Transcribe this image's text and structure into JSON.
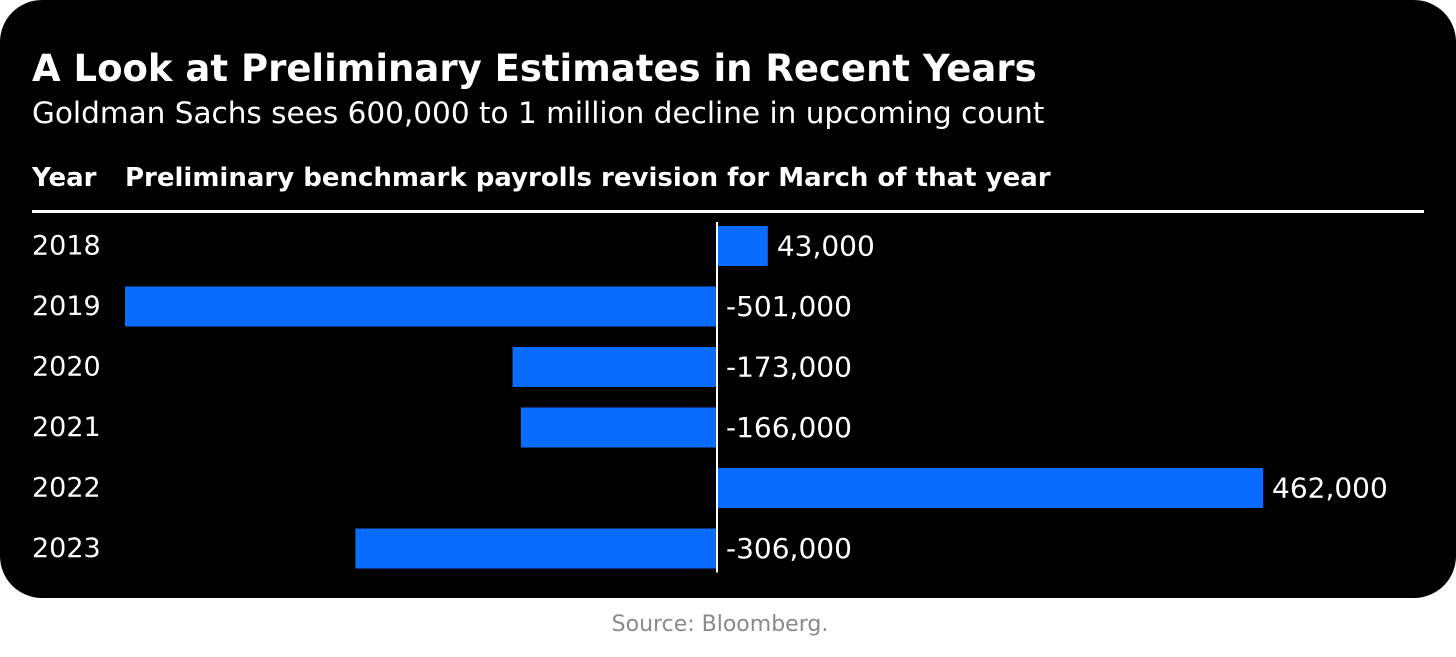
{
  "chart_data": {
    "type": "bar",
    "orientation": "horizontal",
    "title": "A Look at Preliminary Estimates in Recent Years",
    "subtitle": "Goldman Sachs sees 600,000 to 1 million decline in upcoming count",
    "column_headers": {
      "category": "Year",
      "value": "Preliminary benchmark payrolls revision for March of that year"
    },
    "categories": [
      "2018",
      "2019",
      "2020",
      "2021",
      "2022",
      "2023"
    ],
    "values": [
      43000,
      -501000,
      -173000,
      -166000,
      462000,
      -306000
    ],
    "value_labels": [
      "43,000",
      "-501,000",
      "-173,000",
      "-166,000",
      "462,000",
      "-306,000"
    ],
    "bar_color": "#0a6cff",
    "background_color": "#000000",
    "text_color": "#ffffff",
    "grid": false,
    "legend": "none"
  },
  "source": "Source: Bloomberg."
}
